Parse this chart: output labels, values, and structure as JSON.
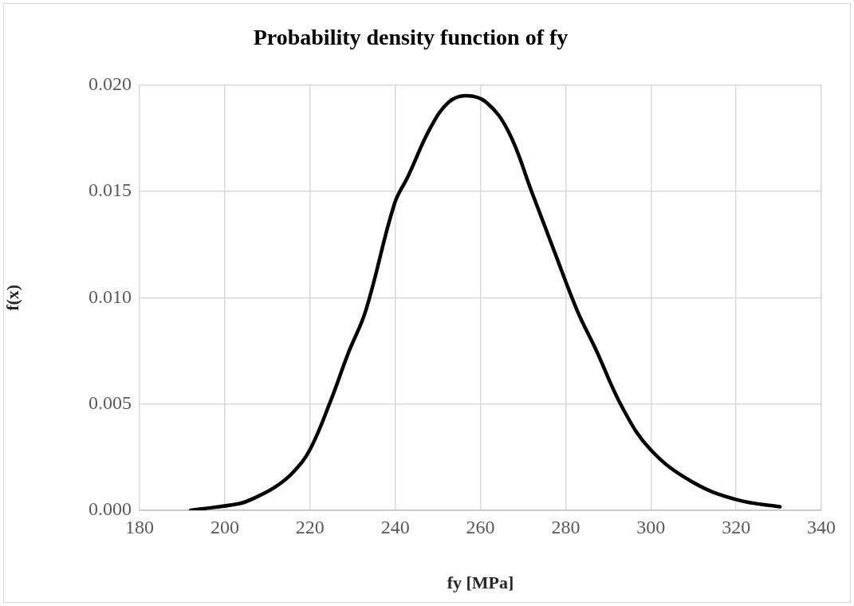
{
  "chart_data": {
    "type": "line",
    "title": "Probability density function of fy",
    "xlabel": "fy [MPa]",
    "ylabel": "f(x)",
    "x": [
      192.0,
      203.5,
      206.5,
      211.8,
      216.1,
      220.0,
      224.7,
      229.0,
      233.1,
      239.8,
      243.0,
      248.3,
      252.6,
      256.6,
      261.3,
      266.6,
      272.0,
      277.3,
      282.7,
      287.0,
      293.4,
      299.9,
      309.6,
      320.3,
      330.3
    ],
    "series": [
      {
        "color": "#000000",
        "values": [
          0.0,
          0.00032,
          0.00054,
          0.00109,
          0.0018,
          0.00286,
          0.00507,
          0.0074,
          0.0094,
          0.0144,
          0.0157,
          0.018,
          0.0192,
          0.0195,
          0.0192,
          0.0178,
          0.015,
          0.0122,
          0.0094,
          0.0076,
          0.0048,
          0.00286,
          0.00135,
          0.00049,
          0.00017
        ]
      }
    ],
    "xlim": [
      180,
      340
    ],
    "xticks": [
      180,
      200,
      220,
      240,
      260,
      280,
      300,
      320,
      340
    ],
    "ylim": [
      0,
      0.02
    ],
    "yticks": [
      {
        "value": 0,
        "label": "0.000"
      },
      {
        "value": 0.005,
        "label": "0.005"
      },
      {
        "value": 0.01,
        "label": "0.010"
      },
      {
        "value": 0.015,
        "label": "0.015"
      },
      {
        "value": 0.02,
        "label": "0.020"
      }
    ],
    "grid": true,
    "legend": false,
    "marker": "none",
    "line_style": "solid"
  }
}
